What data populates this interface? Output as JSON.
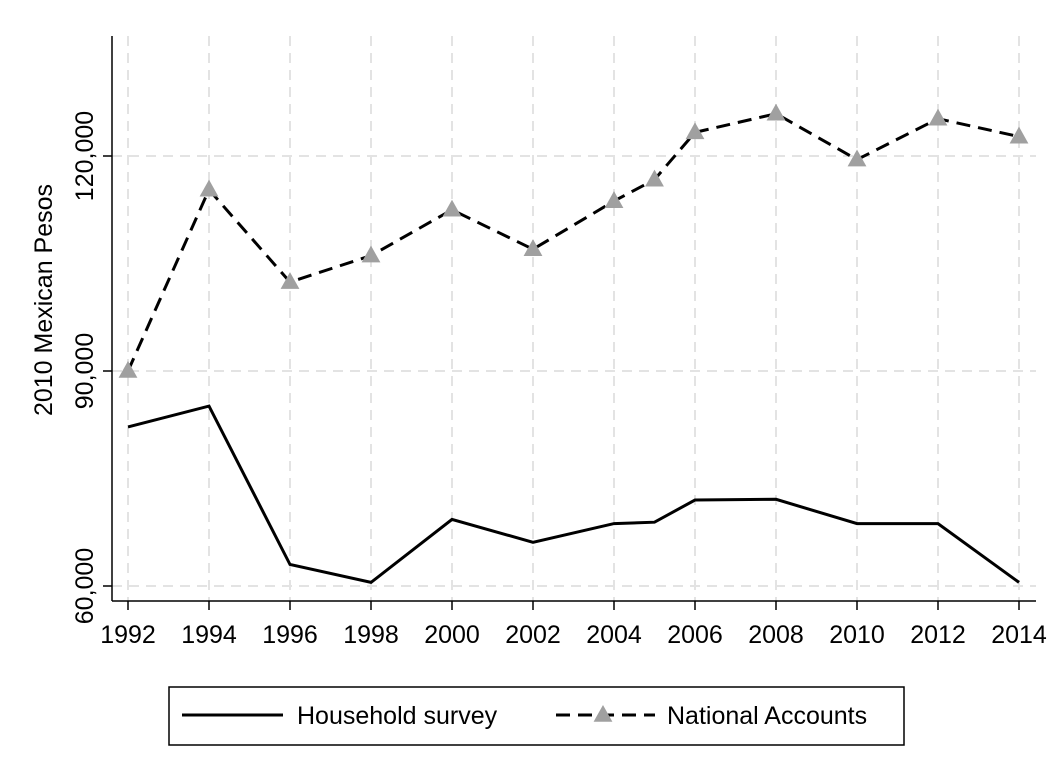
{
  "chart_data": {
    "type": "line",
    "title": "",
    "xlabel": "",
    "ylabel": "2010 Mexican Pesos",
    "x": [
      1992,
      1994,
      1996,
      1998,
      2000,
      2002,
      2004,
      2005,
      2006,
      2008,
      2010,
      2012,
      2014
    ],
    "x_ticks": [
      1992,
      1994,
      1996,
      1998,
      2000,
      2002,
      2004,
      2006,
      2008,
      2010,
      2012,
      2014
    ],
    "x_tick_labels": [
      "1992",
      "1994",
      "1996",
      "1998",
      "2000",
      "2002",
      "2004",
      "2006",
      "2008",
      "2010",
      "2012",
      "2014"
    ],
    "y_ticks": [
      60000,
      90000,
      120000
    ],
    "y_tick_labels": [
      "60,000",
      "90,000",
      "120,000"
    ],
    "xlim": [
      1992,
      2014
    ],
    "ylim": [
      60000,
      138000
    ],
    "grid": true,
    "legend_position": "bottom",
    "series": [
      {
        "name": "Household survey",
        "style": "solid",
        "marker": "none",
        "color": "#000000",
        "values": [
          82200,
          85100,
          63000,
          60500,
          69300,
          66100,
          68700,
          68900,
          72000,
          72100,
          68700,
          68700,
          60500
        ]
      },
      {
        "name": "National Accounts",
        "style": "dashed",
        "marker": "triangle",
        "color": "#000000",
        "marker_color": "#a0a0a0",
        "values": [
          90000,
          115300,
          102400,
          106100,
          112500,
          107000,
          113700,
          116700,
          123300,
          125900,
          119500,
          125200,
          122700
        ]
      }
    ]
  }
}
